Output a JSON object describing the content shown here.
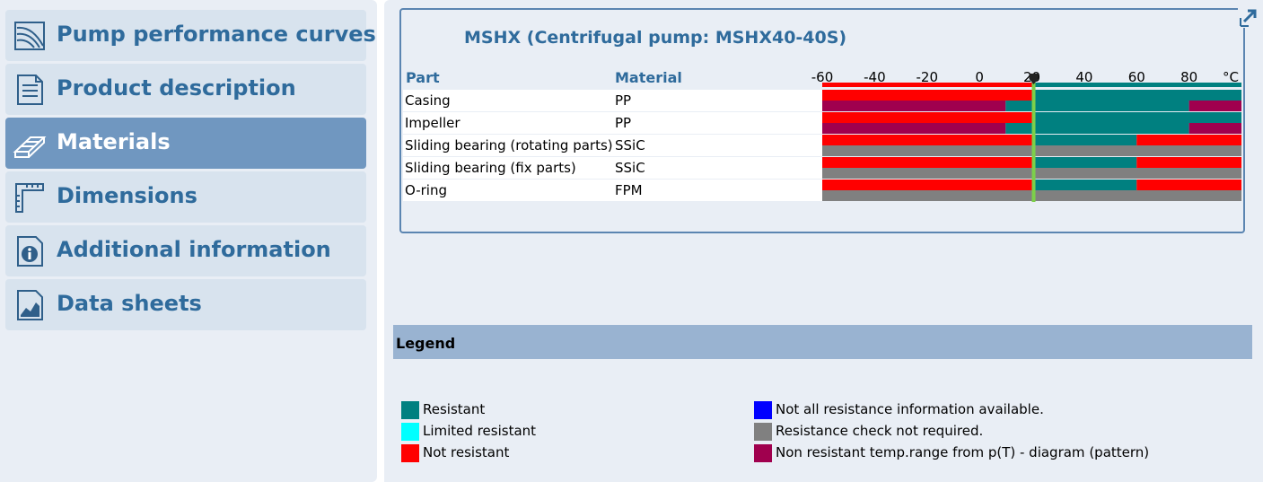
{
  "sidebar": {
    "items": [
      {
        "label": "Pump performance curves",
        "icon": "curve-icon",
        "active": false
      },
      {
        "label": "Product description",
        "icon": "document-icon",
        "active": false
      },
      {
        "label": "Materials",
        "icon": "materials-icon",
        "active": true
      },
      {
        "label": "Dimensions",
        "icon": "ruler-icon",
        "active": false
      },
      {
        "label": "Additional information",
        "icon": "info-icon",
        "active": false
      },
      {
        "label": "Data sheets",
        "icon": "datasheet-icon",
        "active": false
      }
    ]
  },
  "panel": {
    "title": "MSHX (Centrifugal pump: MSHX40-40S)",
    "col_part": "Part",
    "col_material": "Material",
    "rows": [
      {
        "part": "Casing",
        "material": "PP"
      },
      {
        "part": "Impeller",
        "material": "PP"
      },
      {
        "part": "Sliding bearing (rotating parts)",
        "material": "SSiC"
      },
      {
        "part": "Sliding bearing (fix parts)",
        "material": "SSiC"
      },
      {
        "part": "O-ring",
        "material": "FPM"
      }
    ]
  },
  "chart_data": {
    "type": "heatmap",
    "title": "MSHX (Centrifugal pump: MSHX40-40S)",
    "xlabel": "°C",
    "xlim": [
      -60,
      100
    ],
    "ticks": [
      -60,
      -40,
      -20,
      0,
      20,
      40,
      60,
      80
    ],
    "unit_label": "°C",
    "marker_value": 20,
    "colors": {
      "resistant": "#008080",
      "limited": "#00ffff",
      "not": "#ff0000",
      "notall": "#0000ff",
      "notreq": "#808080",
      "pattern": "#a0004e"
    },
    "rows": [
      {
        "part": "Casing",
        "upper": [
          [
            -60,
            20,
            "not"
          ],
          [
            20,
            100,
            "resistant"
          ]
        ],
        "lower": [
          [
            -60,
            10,
            "pattern"
          ],
          [
            10,
            20,
            "resistant"
          ],
          [
            20,
            80,
            "resistant"
          ],
          [
            80,
            100,
            "pattern"
          ]
        ]
      },
      {
        "part": "Impeller",
        "upper": [
          [
            -60,
            20,
            "not"
          ],
          [
            20,
            100,
            "resistant"
          ]
        ],
        "lower": [
          [
            -60,
            10,
            "pattern"
          ],
          [
            10,
            20,
            "resistant"
          ],
          [
            20,
            80,
            "resistant"
          ],
          [
            80,
            100,
            "pattern"
          ]
        ]
      },
      {
        "part": "Sliding bearing (rotating parts)",
        "upper": [
          [
            -60,
            20,
            "not"
          ],
          [
            20,
            60,
            "resistant"
          ],
          [
            60,
            100,
            "not"
          ]
        ],
        "lower": [
          [
            -60,
            100,
            "notreq"
          ]
        ]
      },
      {
        "part": "Sliding bearing (fix parts)",
        "upper": [
          [
            -60,
            20,
            "not"
          ],
          [
            20,
            60,
            "resistant"
          ],
          [
            60,
            100,
            "not"
          ]
        ],
        "lower": [
          [
            -60,
            100,
            "notreq"
          ]
        ]
      },
      {
        "part": "O-ring",
        "upper": [
          [
            -60,
            20,
            "not"
          ],
          [
            20,
            60,
            "resistant"
          ],
          [
            60,
            100,
            "not"
          ]
        ],
        "lower": [
          [
            -60,
            100,
            "notreq"
          ]
        ]
      }
    ]
  },
  "legend": {
    "title": "Legend",
    "items": [
      {
        "label": "Resistant",
        "color": "#008080"
      },
      {
        "label": "Limited resistant",
        "color": "#00ffff"
      },
      {
        "label": "Not resistant",
        "color": "#ff0000"
      },
      {
        "label": "Not all resistance information available.",
        "color": "#0000ff"
      },
      {
        "label": "Resistance check not required.",
        "color": "#808080"
      },
      {
        "label": "Non resistant temp.range from p(T) - diagram (pattern)",
        "color": "#a0004e"
      }
    ]
  }
}
